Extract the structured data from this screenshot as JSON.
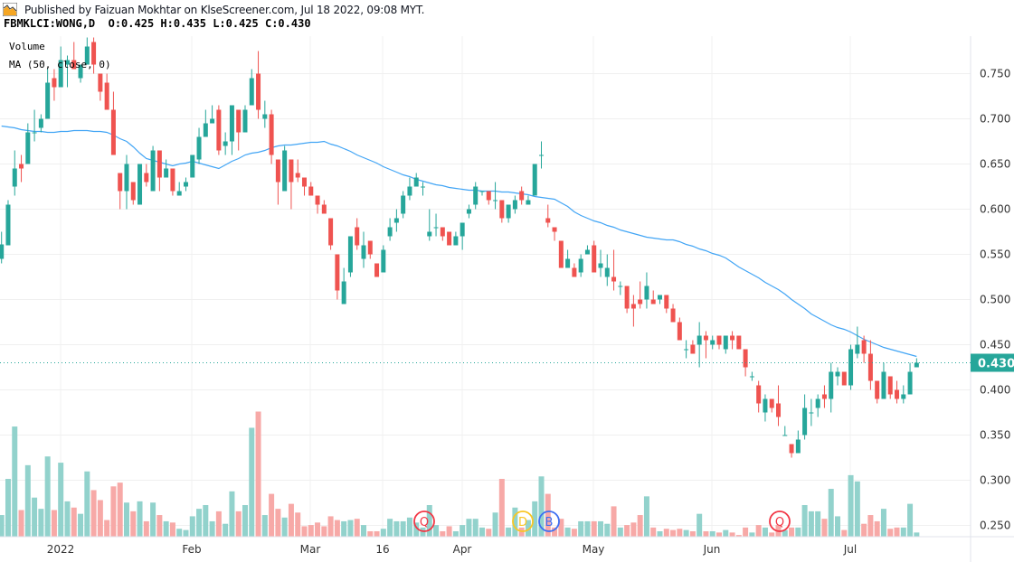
{
  "header": {
    "published": "Published by Faizuan Mokhtar on KlseScreener.com, Jul 18 2022, 09:08 MYT.",
    "symbol_line": "FBMKLCI:WONG,D  O:0.425 H:0.435 L:0.425 C:0.430",
    "logo_icon": "chart-logo-icon"
  },
  "legend": {
    "volume": "Volume",
    "ma": "MA (50, close, 0)"
  },
  "colors": {
    "up": "#26a69a",
    "down": "#ef5350",
    "up_volume": "#92d2cc",
    "down_volume": "#f7a9a7",
    "ma": "#42a5f5",
    "grid": "#f0f0f0"
  },
  "chart_data": {
    "type": "candlestick",
    "symbol": "FBMKLCI:WONG",
    "interval": "D",
    "last": {
      "open": 0.425,
      "high": 0.435,
      "low": 0.425,
      "close": 0.43
    },
    "current_price_label": "0.430",
    "current_price": 0.43,
    "ylim": [
      0.24,
      0.79
    ],
    "y_ticks": [
      "0.750",
      "0.700",
      "0.650",
      "0.600",
      "0.550",
      "0.500",
      "0.450",
      "0.400",
      "0.350",
      "0.300",
      "0.250"
    ],
    "y_tick_values": [
      0.75,
      0.7,
      0.65,
      0.6,
      0.55,
      0.5,
      0.45,
      0.4,
      0.35,
      0.3,
      0.25
    ],
    "x_ticks": [
      "2022",
      "Feb",
      "Mar",
      "16",
      "Apr",
      "May",
      "Jun",
      "Jul"
    ],
    "grid": true,
    "ohlc": [
      [
        0.545,
        0.575,
        0.54,
        0.561
      ],
      [
        0.56,
        0.61,
        0.56,
        0.605
      ],
      [
        0.625,
        0.665,
        0.615,
        0.645
      ],
      [
        0.65,
        0.66,
        0.63,
        0.645
      ],
      [
        0.65,
        0.695,
        0.65,
        0.685
      ],
      [
        0.685,
        0.71,
        0.675,
        0.685
      ],
      [
        0.69,
        0.705,
        0.685,
        0.7
      ],
      [
        0.7,
        0.755,
        0.7,
        0.74
      ],
      [
        0.745,
        0.755,
        0.72,
        0.735
      ],
      [
        0.735,
        0.78,
        0.735,
        0.765
      ],
      [
        0.76,
        0.77,
        0.735,
        0.765
      ],
      [
        0.765,
        0.785,
        0.755,
        0.755
      ],
      [
        0.745,
        0.76,
        0.74,
        0.76
      ],
      [
        0.76,
        0.79,
        0.76,
        0.78
      ],
      [
        0.785,
        0.79,
        0.75,
        0.76
      ],
      [
        0.75,
        0.75,
        0.72,
        0.73
      ],
      [
        0.74,
        0.75,
        0.71,
        0.71
      ],
      [
        0.71,
        0.73,
        0.66,
        0.66
      ],
      [
        0.64,
        0.64,
        0.6,
        0.62
      ],
      [
        0.62,
        0.66,
        0.6,
        0.65
      ],
      [
        0.63,
        0.63,
        0.605,
        0.61
      ],
      [
        0.605,
        0.65,
        0.605,
        0.65
      ],
      [
        0.64,
        0.65,
        0.625,
        0.63
      ],
      [
        0.62,
        0.67,
        0.62,
        0.665
      ],
      [
        0.665,
        0.665,
        0.62,
        0.635
      ],
      [
        0.635,
        0.655,
        0.635,
        0.645
      ],
      [
        0.645,
        0.645,
        0.615,
        0.62
      ],
      [
        0.615,
        0.63,
        0.615,
        0.62
      ],
      [
        0.625,
        0.635,
        0.62,
        0.63
      ],
      [
        0.635,
        0.66,
        0.635,
        0.66
      ],
      [
        0.655,
        0.69,
        0.65,
        0.68
      ],
      [
        0.68,
        0.71,
        0.68,
        0.695
      ],
      [
        0.695,
        0.715,
        0.695,
        0.7
      ],
      [
        0.71,
        0.715,
        0.66,
        0.665
      ],
      [
        0.67,
        0.685,
        0.66,
        0.675
      ],
      [
        0.675,
        0.715,
        0.66,
        0.715
      ],
      [
        0.71,
        0.71,
        0.665,
        0.685
      ],
      [
        0.685,
        0.715,
        0.685,
        0.71
      ],
      [
        0.715,
        0.755,
        0.715,
        0.745
      ],
      [
        0.75,
        0.775,
        0.7,
        0.71
      ],
      [
        0.7,
        0.72,
        0.69,
        0.705
      ],
      [
        0.705,
        0.71,
        0.65,
        0.66
      ],
      [
        0.655,
        0.655,
        0.605,
        0.63
      ],
      [
        0.62,
        0.67,
        0.62,
        0.665
      ],
      [
        0.655,
        0.655,
        0.6,
        0.63
      ],
      [
        0.64,
        0.655,
        0.63,
        0.635
      ],
      [
        0.635,
        0.635,
        0.615,
        0.625
      ],
      [
        0.625,
        0.63,
        0.615,
        0.615
      ],
      [
        0.615,
        0.615,
        0.595,
        0.605
      ],
      [
        0.605,
        0.61,
        0.595,
        0.595
      ],
      [
        0.59,
        0.59,
        0.555,
        0.56
      ],
      [
        0.55,
        0.55,
        0.5,
        0.51
      ],
      [
        0.495,
        0.535,
        0.495,
        0.52
      ],
      [
        0.53,
        0.57,
        0.525,
        0.57
      ],
      [
        0.58,
        0.59,
        0.555,
        0.56
      ],
      [
        0.545,
        0.575,
        0.535,
        0.56
      ],
      [
        0.565,
        0.565,
        0.545,
        0.55
      ],
      [
        0.54,
        0.54,
        0.525,
        0.525
      ],
      [
        0.53,
        0.56,
        0.53,
        0.555
      ],
      [
        0.57,
        0.59,
        0.565,
        0.58
      ],
      [
        0.585,
        0.6,
        0.575,
        0.59
      ],
      [
        0.595,
        0.62,
        0.59,
        0.615
      ],
      [
        0.615,
        0.635,
        0.61,
        0.625
      ],
      [
        0.625,
        0.64,
        0.625,
        0.635
      ],
      [
        0.625,
        0.63,
        0.615,
        0.625
      ],
      [
        0.57,
        0.6,
        0.565,
        0.575
      ],
      [
        0.58,
        0.595,
        0.57,
        0.58
      ],
      [
        0.58,
        0.58,
        0.565,
        0.57
      ],
      [
        0.575,
        0.575,
        0.56,
        0.56
      ],
      [
        0.56,
        0.575,
        0.56,
        0.57
      ],
      [
        0.57,
        0.585,
        0.555,
        0.585
      ],
      [
        0.595,
        0.605,
        0.59,
        0.6
      ],
      [
        0.605,
        0.63,
        0.6,
        0.625
      ],
      [
        0.62,
        0.62,
        0.615,
        0.62
      ],
      [
        0.62,
        0.62,
        0.605,
        0.61
      ],
      [
        0.61,
        0.63,
        0.6,
        0.61
      ],
      [
        0.61,
        0.61,
        0.585,
        0.59
      ],
      [
        0.59,
        0.605,
        0.585,
        0.605
      ],
      [
        0.6,
        0.615,
        0.595,
        0.61
      ],
      [
        0.62,
        0.625,
        0.605,
        0.61
      ],
      [
        0.605,
        0.615,
        0.605,
        0.61
      ],
      [
        0.615,
        0.65,
        0.615,
        0.65
      ],
      [
        0.66,
        0.675,
        0.645,
        0.66
      ],
      [
        0.59,
        0.605,
        0.58,
        0.585
      ],
      [
        0.58,
        0.58,
        0.565,
        0.575
      ],
      [
        0.565,
        0.565,
        0.535,
        0.535
      ],
      [
        0.535,
        0.555,
        0.535,
        0.545
      ],
      [
        0.535,
        0.54,
        0.525,
        0.525
      ],
      [
        0.53,
        0.55,
        0.525,
        0.545
      ],
      [
        0.55,
        0.56,
        0.55,
        0.555
      ],
      [
        0.56,
        0.565,
        0.53,
        0.53
      ],
      [
        0.535,
        0.555,
        0.525,
        0.54
      ],
      [
        0.525,
        0.55,
        0.515,
        0.535
      ],
      [
        0.525,
        0.555,
        0.51,
        0.52
      ],
      [
        0.515,
        0.52,
        0.505,
        0.515
      ],
      [
        0.515,
        0.515,
        0.485,
        0.49
      ],
      [
        0.495,
        0.505,
        0.47,
        0.49
      ],
      [
        0.5,
        0.52,
        0.49,
        0.495
      ],
      [
        0.5,
        0.53,
        0.49,
        0.515
      ],
      [
        0.5,
        0.51,
        0.495,
        0.495
      ],
      [
        0.5,
        0.505,
        0.495,
        0.505
      ],
      [
        0.505,
        0.505,
        0.485,
        0.49
      ],
      [
        0.49,
        0.495,
        0.475,
        0.475
      ],
      [
        0.475,
        0.48,
        0.455,
        0.455
      ],
      [
        0.445,
        0.455,
        0.435,
        0.445
      ],
      [
        0.45,
        0.455,
        0.44,
        0.44
      ],
      [
        0.45,
        0.475,
        0.425,
        0.46
      ],
      [
        0.46,
        0.465,
        0.435,
        0.455
      ],
      [
        0.45,
        0.46,
        0.445,
        0.455
      ],
      [
        0.46,
        0.46,
        0.445,
        0.45
      ],
      [
        0.445,
        0.46,
        0.44,
        0.46
      ],
      [
        0.46,
        0.465,
        0.445,
        0.455
      ],
      [
        0.46,
        0.46,
        0.445,
        0.445
      ],
      [
        0.445,
        0.445,
        0.415,
        0.425
      ],
      [
        0.415,
        0.42,
        0.41,
        0.415
      ],
      [
        0.405,
        0.41,
        0.375,
        0.385
      ],
      [
        0.375,
        0.395,
        0.365,
        0.39
      ],
      [
        0.39,
        0.39,
        0.375,
        0.38
      ],
      [
        0.385,
        0.405,
        0.36,
        0.37
      ],
      [
        0.35,
        0.36,
        0.35,
        0.35
      ],
      [
        0.34,
        0.34,
        0.325,
        0.33
      ],
      [
        0.33,
        0.355,
        0.33,
        0.345
      ],
      [
        0.35,
        0.395,
        0.345,
        0.38
      ],
      [
        0.375,
        0.39,
        0.36,
        0.375
      ],
      [
        0.38,
        0.395,
        0.37,
        0.39
      ],
      [
        0.395,
        0.405,
        0.38,
        0.39
      ],
      [
        0.39,
        0.43,
        0.375,
        0.42
      ],
      [
        0.415,
        0.425,
        0.405,
        0.42
      ],
      [
        0.42,
        0.42,
        0.405,
        0.405
      ],
      [
        0.405,
        0.45,
        0.4,
        0.445
      ],
      [
        0.44,
        0.47,
        0.435,
        0.45
      ],
      [
        0.455,
        0.46,
        0.43,
        0.44
      ],
      [
        0.44,
        0.455,
        0.4,
        0.41
      ],
      [
        0.41,
        0.41,
        0.385,
        0.39
      ],
      [
        0.39,
        0.43,
        0.39,
        0.42
      ],
      [
        0.415,
        0.415,
        0.39,
        0.395
      ],
      [
        0.4,
        0.41,
        0.385,
        0.39
      ],
      [
        0.39,
        0.405,
        0.385,
        0.395
      ],
      [
        0.395,
        0.43,
        0.395,
        0.42
      ],
      [
        0.425,
        0.435,
        0.425,
        0.43
      ]
    ],
    "volume_relative_pct": [
      17,
      46,
      88,
      21,
      57,
      31,
      22,
      64,
      21,
      59,
      28,
      23,
      18,
      52,
      37,
      29,
      13,
      40,
      43,
      27,
      20,
      28,
      12,
      27,
      17,
      12,
      11,
      6,
      5,
      16,
      22,
      25,
      12,
      20,
      10,
      36,
      20,
      25,
      87,
      100,
      17,
      34,
      22,
      15,
      26,
      19,
      8,
      9,
      11,
      8,
      16,
      13,
      12,
      13,
      14,
      9,
      4,
      4,
      6,
      14,
      12,
      12,
      15,
      11,
      7,
      25,
      9,
      4,
      8,
      4,
      9,
      14,
      14,
      7,
      6,
      19,
      46,
      7,
      23,
      7,
      13,
      28,
      48,
      34,
      7,
      14,
      7,
      6,
      12,
      12,
      12,
      12,
      10,
      24,
      7,
      9,
      11,
      17,
      32,
      7,
      4,
      6,
      5,
      6,
      5,
      4,
      18,
      4,
      4,
      3,
      5,
      3,
      1,
      7,
      3,
      9,
      7,
      3,
      9,
      5,
      7,
      7,
      25,
      20,
      20,
      14,
      38,
      16,
      5,
      49,
      44,
      10,
      17,
      12,
      22,
      6,
      7,
      7,
      26,
      3
    ],
    "volume_up": [
      1,
      1,
      1,
      0,
      1,
      1,
      1,
      1,
      0,
      1,
      1,
      0,
      1,
      1,
      0,
      0,
      0,
      0,
      0,
      1,
      0,
      1,
      0,
      1,
      0,
      1,
      0,
      1,
      1,
      1,
      1,
      1,
      1,
      0,
      1,
      1,
      0,
      1,
      1,
      0,
      1,
      0,
      0,
      1,
      0,
      0,
      0,
      0,
      0,
      0,
      0,
      0,
      1,
      1,
      0,
      1,
      0,
      0,
      1,
      1,
      1,
      1,
      1,
      1,
      1,
      1,
      1,
      0,
      0,
      1,
      1,
      1,
      1,
      1,
      0,
      1,
      0,
      1,
      1,
      0,
      1,
      1,
      1,
      0,
      0,
      0,
      1,
      0,
      1,
      1,
      0,
      1,
      1,
      0,
      1,
      0,
      0,
      0,
      1,
      0,
      1,
      0,
      0,
      0,
      1,
      0,
      1,
      0,
      1,
      0,
      1,
      0,
      0,
      0,
      1,
      0,
      1,
      0,
      0,
      1,
      0,
      1,
      1,
      1,
      1,
      0,
      1,
      1,
      0,
      1,
      1,
      0,
      0,
      0,
      1,
      0,
      0,
      1,
      1,
      1
    ],
    "ma50": [
      0.692,
      0.691,
      0.69,
      0.688,
      0.687,
      0.686,
      0.686,
      0.685,
      0.685,
      0.686,
      0.686,
      0.687,
      0.687,
      0.687,
      0.686,
      0.686,
      0.685,
      0.682,
      0.678,
      0.675,
      0.669,
      0.662,
      0.656,
      0.654,
      0.652,
      0.65,
      0.648,
      0.65,
      0.651,
      0.653,
      0.651,
      0.649,
      0.647,
      0.645,
      0.649,
      0.653,
      0.656,
      0.66,
      0.662,
      0.663,
      0.665,
      0.668,
      0.67,
      0.671,
      0.671,
      0.672,
      0.673,
      0.674,
      0.674,
      0.675,
      0.672,
      0.67,
      0.667,
      0.664,
      0.66,
      0.657,
      0.654,
      0.651,
      0.647,
      0.644,
      0.641,
      0.638,
      0.636,
      0.633,
      0.631,
      0.629,
      0.627,
      0.626,
      0.624,
      0.623,
      0.622,
      0.621,
      0.621,
      0.62,
      0.62,
      0.62,
      0.619,
      0.619,
      0.618,
      0.617,
      0.616,
      0.614,
      0.613,
      0.612,
      0.611,
      0.607,
      0.603,
      0.597,
      0.593,
      0.59,
      0.587,
      0.585,
      0.582,
      0.58,
      0.577,
      0.575,
      0.573,
      0.571,
      0.569,
      0.568,
      0.567,
      0.566,
      0.566,
      0.564,
      0.561,
      0.559,
      0.556,
      0.554,
      0.551,
      0.549,
      0.546,
      0.541,
      0.536,
      0.532,
      0.528,
      0.524,
      0.519,
      0.515,
      0.511,
      0.506,
      0.5,
      0.495,
      0.49,
      0.484,
      0.48,
      0.476,
      0.472,
      0.469,
      0.467,
      0.464,
      0.46,
      0.456,
      0.453,
      0.45,
      0.447,
      0.445,
      0.443,
      0.441,
      0.439,
      0.437
    ],
    "events": [
      {
        "label": "Q",
        "color": "#f23645"
      },
      {
        "label": "D",
        "color": "#f9c623"
      },
      {
        "label": "B",
        "color": "#3d6ff2"
      },
      {
        "label": "Q",
        "color": "#f23645"
      }
    ]
  }
}
